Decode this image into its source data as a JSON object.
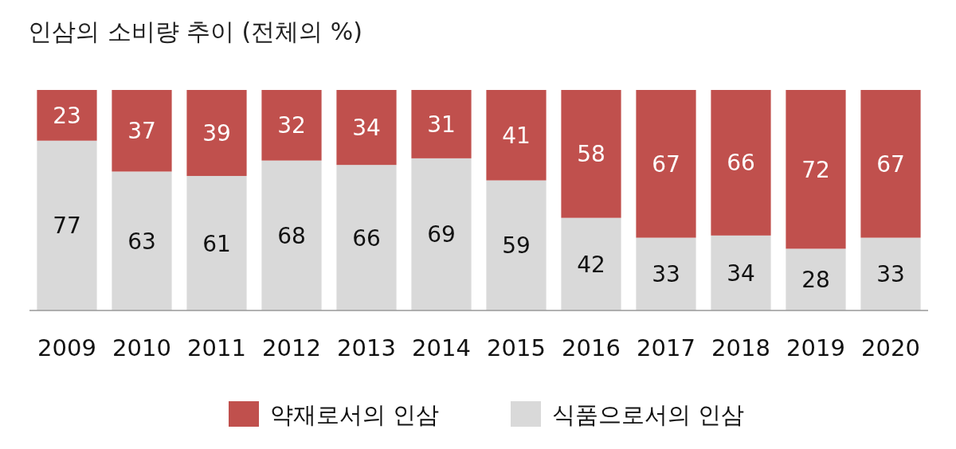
{
  "chart_data": {
    "type": "bar",
    "stacked": true,
    "title": "인삼의 소비량 추이 (전체의 %)",
    "categories": [
      "2009",
      "2010",
      "2011",
      "2012",
      "2013",
      "2014",
      "2015",
      "2016",
      "2017",
      "2018",
      "2019",
      "2020"
    ],
    "series": [
      {
        "name": "식품으로서의 인삼",
        "color": "#d9d9d9",
        "values": [
          77,
          63,
          61,
          68,
          66,
          69,
          59,
          42,
          33,
          34,
          28,
          33
        ]
      },
      {
        "name": "약재로서의 인삼",
        "color": "#c0504d",
        "values": [
          23,
          37,
          39,
          32,
          34,
          31,
          41,
          58,
          67,
          66,
          72,
          67
        ]
      }
    ],
    "data_labels": true,
    "legend": "bottom"
  }
}
